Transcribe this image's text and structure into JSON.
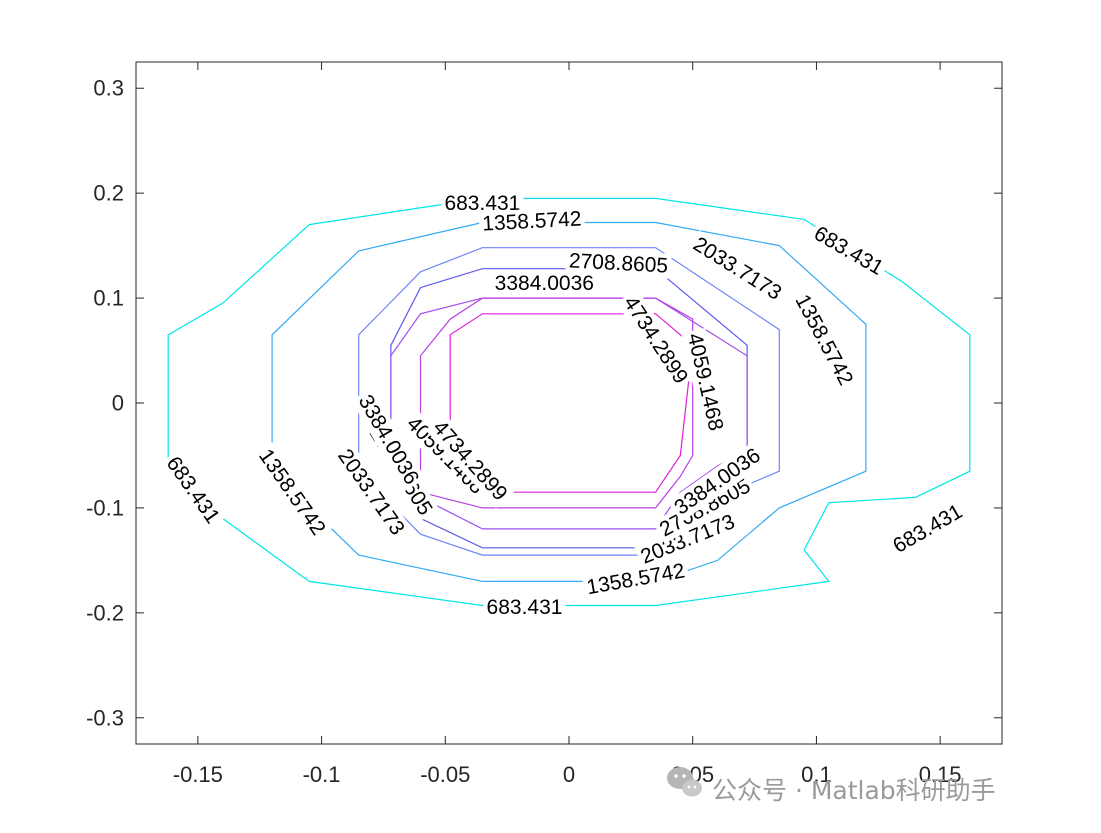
{
  "chart_data": {
    "type": "contour",
    "title": "",
    "xlabel": "",
    "ylabel": "",
    "xlim": [
      -0.175,
      0.175
    ],
    "ylim": [
      -0.325,
      0.325
    ],
    "grid": false,
    "box": true,
    "xticks": [
      -0.15,
      -0.1,
      -0.05,
      0,
      0.05,
      0.1,
      0.15
    ],
    "xtick_labels": [
      "-0.15",
      "-0.1",
      "-0.05",
      "0",
      "0.05",
      "0.1",
      "0.15"
    ],
    "yticks": [
      0.3,
      0.2,
      0.1,
      0,
      -0.1,
      -0.2,
      -0.3
    ],
    "ytick_labels": [
      "0.3",
      "0.2",
      "0.1",
      "0",
      "-0.1",
      "-0.2",
      "-0.3"
    ],
    "levels": [
      {
        "value": 683.431,
        "label": "683.431",
        "color": "#00e6e6",
        "path": [
          [
            -0.035,
            0.195
          ],
          [
            0.035,
            0.195
          ],
          [
            0.095,
            0.175
          ],
          [
            0.135,
            0.115
          ],
          [
            0.162,
            0.065
          ],
          [
            0.162,
            -0.065
          ],
          [
            0.14,
            -0.09
          ],
          [
            0.105,
            -0.095
          ],
          [
            0.095,
            -0.14
          ],
          [
            0.105,
            -0.17
          ],
          [
            0.035,
            -0.193
          ],
          [
            -0.035,
            -0.193
          ],
          [
            -0.105,
            -0.17
          ],
          [
            -0.14,
            -0.11
          ],
          [
            -0.162,
            -0.065
          ],
          [
            -0.162,
            0.065
          ],
          [
            -0.14,
            0.095
          ],
          [
            -0.105,
            0.17
          ]
        ],
        "labels": [
          {
            "text": "683.431",
            "x": -0.035,
            "y": 0.19,
            "angle": 0
          },
          {
            "text": "683.431",
            "x": 0.113,
            "y": 0.145,
            "angle": 30
          },
          {
            "text": "683.431",
            "x": -0.152,
            "y": -0.083,
            "angle": 55
          },
          {
            "text": "683.431",
            "x": 0.145,
            "y": -0.12,
            "angle": -30
          },
          {
            "text": "683.431",
            "x": -0.018,
            "y": -0.195,
            "angle": 0
          }
        ]
      },
      {
        "value": 1358.5742,
        "label": "1358.5742",
        "color": "#33aaf2",
        "path": [
          [
            -0.035,
            0.172
          ],
          [
            0.035,
            0.172
          ],
          [
            0.085,
            0.15
          ],
          [
            0.12,
            0.075
          ],
          [
            0.12,
            -0.065
          ],
          [
            0.085,
            -0.1
          ],
          [
            0.06,
            -0.15
          ],
          [
            0.035,
            -0.17
          ],
          [
            -0.035,
            -0.17
          ],
          [
            -0.085,
            -0.145
          ],
          [
            -0.12,
            -0.065
          ],
          [
            -0.12,
            0.065
          ],
          [
            -0.085,
            0.145
          ]
        ],
        "labels": [
          {
            "text": "1358.5742",
            "x": -0.015,
            "y": 0.173,
            "angle": -3
          },
          {
            "text": "1358.5742",
            "x": 0.103,
            "y": 0.06,
            "angle": 62
          },
          {
            "text": "1358.5742",
            "x": -0.112,
            "y": -0.085,
            "angle": 55
          },
          {
            "text": "1358.5742",
            "x": 0.027,
            "y": -0.168,
            "angle": -10
          }
        ]
      },
      {
        "value": 2033.7173,
        "label": "2033.7173",
        "color": "#6f86f5",
        "path": [
          [
            -0.035,
            0.148
          ],
          [
            0.035,
            0.148
          ],
          [
            0.085,
            0.07
          ],
          [
            0.085,
            -0.065
          ],
          [
            0.06,
            -0.09
          ],
          [
            0.05,
            -0.13
          ],
          [
            0.035,
            -0.145
          ],
          [
            -0.035,
            -0.145
          ],
          [
            -0.06,
            -0.125
          ],
          [
            -0.085,
            -0.065
          ],
          [
            -0.085,
            0.065
          ],
          [
            -0.06,
            0.125
          ]
        ],
        "labels": [
          {
            "text": "2033.7173",
            "x": 0.068,
            "y": 0.128,
            "angle": 32
          },
          {
            "text": "2033.7173",
            "x": -0.08,
            "y": -0.085,
            "angle": 55
          },
          {
            "text": "2033.7173",
            "x": 0.048,
            "y": -0.13,
            "angle": -22
          }
        ]
      },
      {
        "value": 2708.8605,
        "label": "2708.8605",
        "color": "#5a5af0",
        "path": [
          [
            -0.035,
            0.128
          ],
          [
            0.035,
            0.128
          ],
          [
            0.072,
            0.055
          ],
          [
            0.072,
            -0.055
          ],
          [
            0.06,
            -0.07
          ],
          [
            0.045,
            -0.11
          ],
          [
            0.035,
            -0.138
          ],
          [
            -0.035,
            -0.138
          ],
          [
            -0.06,
            -0.11
          ],
          [
            -0.072,
            -0.055
          ],
          [
            -0.072,
            0.055
          ],
          [
            -0.06,
            0.11
          ]
        ],
        "labels": [
          {
            "text": "2708.8605",
            "x": 0.02,
            "y": 0.133,
            "angle": 3
          },
          {
            "text": "2708.8605",
            "x": -0.068,
            "y": -0.065,
            "angle": 58
          },
          {
            "text": "2708.8605",
            "x": 0.055,
            "y": -0.1,
            "angle": -28
          }
        ]
      },
      {
        "value": 3384.0036,
        "label": "3384.0036",
        "color": "#a24cf0",
        "path": [
          [
            -0.035,
            0.1
          ],
          [
            0.035,
            0.1
          ],
          [
            0.072,
            0.045
          ],
          [
            0.072,
            -0.045
          ],
          [
            0.06,
            -0.06
          ],
          [
            0.045,
            -0.085
          ],
          [
            0.035,
            -0.12
          ],
          [
            -0.035,
            -0.12
          ],
          [
            -0.06,
            -0.09
          ],
          [
            -0.072,
            -0.045
          ],
          [
            -0.072,
            0.045
          ],
          [
            -0.06,
            0.085
          ]
        ],
        "labels": [
          {
            "text": "3384.0036",
            "x": -0.01,
            "y": 0.114,
            "angle": 0
          },
          {
            "text": "3384.0036",
            "x": -0.073,
            "y": -0.035,
            "angle": 60
          },
          {
            "text": "3384.0036",
            "x": 0.06,
            "y": -0.075,
            "angle": -35
          }
        ]
      },
      {
        "value": 4059.1468,
        "label": "4059.1468",
        "color": "#b83fe0",
        "path": [
          [
            -0.035,
            0.1
          ],
          [
            0.035,
            0.1
          ],
          [
            0.05,
            0.08
          ],
          [
            0.05,
            -0.05
          ],
          [
            0.045,
            -0.07
          ],
          [
            0.035,
            -0.1
          ],
          [
            -0.035,
            -0.1
          ],
          [
            -0.06,
            -0.085
          ],
          [
            -0.06,
            0.045
          ],
          [
            -0.048,
            0.08
          ]
        ],
        "labels": [
          {
            "text": "4059.1468",
            "x": 0.055,
            "y": 0.02,
            "angle": 77
          },
          {
            "text": "4059.1468",
            "x": -0.05,
            "y": -0.05,
            "angle": 45
          }
        ]
      },
      {
        "value": 4734.2899,
        "label": "4734.2899",
        "color": "#e020d8",
        "path": [
          [
            -0.035,
            0.085
          ],
          [
            0.035,
            0.085
          ],
          [
            0.05,
            0.055
          ],
          [
            0.045,
            -0.05
          ],
          [
            0.035,
            -0.085
          ],
          [
            -0.035,
            -0.085
          ],
          [
            -0.048,
            -0.065
          ],
          [
            -0.048,
            0.065
          ]
        ],
        "labels": [
          {
            "text": "4734.2899",
            "x": 0.035,
            "y": 0.06,
            "angle": 57
          },
          {
            "text": "4734.2899",
            "x": -0.04,
            "y": -0.055,
            "angle": 48
          }
        ]
      }
    ]
  },
  "watermark": {
    "text": "公众号 · Matlab科研助手",
    "icon": "wechat-icon"
  },
  "colors": {
    "axis": "#262626",
    "box": "#262626",
    "background": "#ffffff"
  }
}
